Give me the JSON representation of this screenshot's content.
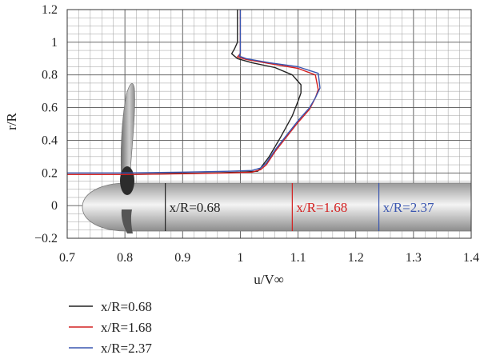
{
  "chart_data": {
    "type": "line",
    "xlabel": "u/V∞",
    "ylabel": "r/R",
    "xlim": [
      0.7,
      1.4
    ],
    "ylim": [
      -0.2,
      1.2
    ],
    "x_ticks": [
      "0.7",
      "0.8",
      "0.9",
      "1",
      "1.1",
      "1.2",
      "1.3",
      "1.4"
    ],
    "y_ticks": [
      "−0.2",
      "0",
      "0.2",
      "0.4",
      "0.6",
      "0.8",
      "1",
      "1.2"
    ],
    "grid": true,
    "legend_position": "below",
    "series": [
      {
        "name": "x/R=0.68",
        "color": "#222222",
        "points": [
          [
            0.7,
            0.19
          ],
          [
            0.8,
            0.19
          ],
          [
            0.88,
            0.195
          ],
          [
            0.95,
            0.2
          ],
          [
            1.0,
            0.205
          ],
          [
            1.03,
            0.21
          ],
          [
            1.035,
            0.23
          ],
          [
            1.05,
            0.3
          ],
          [
            1.07,
            0.42
          ],
          [
            1.09,
            0.55
          ],
          [
            1.1,
            0.64
          ],
          [
            1.105,
            0.69
          ],
          [
            1.105,
            0.74
          ],
          [
            1.09,
            0.8
          ],
          [
            1.06,
            0.845
          ],
          [
            1.02,
            0.875
          ],
          [
            0.995,
            0.9
          ],
          [
            0.985,
            0.93
          ],
          [
            0.99,
            0.96
          ],
          [
            0.995,
            1.0
          ],
          [
            0.995,
            1.06
          ],
          [
            0.995,
            1.2
          ]
        ]
      },
      {
        "name": "x/R=1.68",
        "color": "#d42020",
        "points": [
          [
            0.7,
            0.19
          ],
          [
            0.8,
            0.19
          ],
          [
            0.9,
            0.195
          ],
          [
            0.98,
            0.2
          ],
          [
            1.02,
            0.205
          ],
          [
            1.035,
            0.22
          ],
          [
            1.045,
            0.25
          ],
          [
            1.06,
            0.33
          ],
          [
            1.08,
            0.42
          ],
          [
            1.1,
            0.51
          ],
          [
            1.12,
            0.59
          ],
          [
            1.13,
            0.66
          ],
          [
            1.135,
            0.71
          ],
          [
            1.13,
            0.8
          ],
          [
            1.1,
            0.84
          ],
          [
            1.05,
            0.87
          ],
          [
            1.01,
            0.895
          ],
          [
            0.995,
            0.91
          ],
          [
            1.0,
            0.93
          ],
          [
            1.0,
            1.0
          ],
          [
            1.0,
            1.2
          ]
        ]
      },
      {
        "name": "x/R=2.37",
        "color": "#3a56b0",
        "points": [
          [
            0.7,
            0.2
          ],
          [
            0.8,
            0.2
          ],
          [
            0.9,
            0.205
          ],
          [
            0.98,
            0.21
          ],
          [
            1.02,
            0.215
          ],
          [
            1.035,
            0.23
          ],
          [
            1.045,
            0.26
          ],
          [
            1.06,
            0.34
          ],
          [
            1.08,
            0.43
          ],
          [
            1.1,
            0.52
          ],
          [
            1.12,
            0.6
          ],
          [
            1.13,
            0.66
          ],
          [
            1.138,
            0.72
          ],
          [
            1.135,
            0.81
          ],
          [
            1.1,
            0.85
          ],
          [
            1.05,
            0.875
          ],
          [
            1.01,
            0.9
          ],
          [
            0.998,
            0.915
          ],
          [
            1.0,
            0.935
          ],
          [
            1.0,
            1.0
          ],
          [
            1.0,
            1.2
          ]
        ]
      }
    ],
    "station_labels": [
      {
        "text": "x/R=0.68",
        "x": 0.87,
        "color": "#222222"
      },
      {
        "text": "x/R=1.68",
        "x": 1.09,
        "color": "#d42020"
      },
      {
        "text": "x/R=2.37",
        "x": 1.24,
        "color": "#3a56b0"
      }
    ]
  }
}
